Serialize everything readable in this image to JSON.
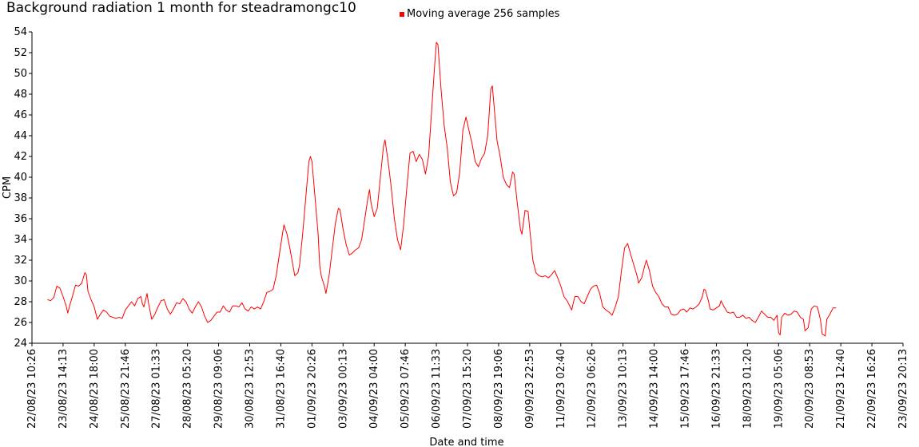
{
  "chart_data": {
    "type": "line",
    "title": "Background radiation 1 month for steadramongc10",
    "xlabel": "Date and time",
    "ylabel": "CPM",
    "ylim": [
      24,
      54
    ],
    "y_ticks": [
      24,
      26,
      28,
      30,
      32,
      34,
      36,
      38,
      40,
      42,
      44,
      46,
      48,
      50,
      52,
      54
    ],
    "x_ticks": [
      "22/08/23 10:26",
      "23/08/23 14:13",
      "24/08/23 18:00",
      "25/08/23 21:46",
      "27/08/23 01:33",
      "28/08/23 05:20",
      "29/08/23 09:06",
      "30/08/23 12:53",
      "31/08/23 16:40",
      "01/09/23 20:26",
      "03/09/23 00:13",
      "04/09/23 04:00",
      "05/09/23 07:46",
      "06/09/23 11:33",
      "07/09/23 15:20",
      "08/09/23 19:06",
      "09/09/23 22:53",
      "11/09/23 02:40",
      "12/09/23 06:26",
      "13/09/23 10:13",
      "14/09/23 14:00",
      "15/09/23 17:46",
      "16/09/23 21:33",
      "18/09/23 01:20",
      "19/09/23 05:06",
      "20/09/23 08:53",
      "21/09/23 12:40",
      "22/09/23 16:26",
      "23/09/23 20:13"
    ],
    "legend_position": "top-center",
    "grid": false,
    "series": [
      {
        "name": "Moving average 256 samples",
        "color": "#ff0000",
        "points": [
          [
            0.5,
            28.2
          ],
          [
            0.6,
            28.1
          ],
          [
            0.7,
            28.4
          ],
          [
            0.8,
            29.5
          ],
          [
            0.9,
            29.3
          ],
          [
            1.0,
            28.5
          ],
          [
            1.1,
            27.6
          ],
          [
            1.15,
            26.9
          ],
          [
            1.2,
            27.5
          ],
          [
            1.3,
            28.5
          ],
          [
            1.4,
            29.6
          ],
          [
            1.5,
            29.5
          ],
          [
            1.6,
            29.8
          ],
          [
            1.7,
            30.8
          ],
          [
            1.75,
            30.6
          ],
          [
            1.8,
            29.0
          ],
          [
            1.9,
            28.2
          ],
          [
            2.0,
            27.5
          ],
          [
            2.1,
            26.3
          ],
          [
            2.2,
            26.8
          ],
          [
            2.3,
            27.2
          ],
          [
            2.4,
            27.0
          ],
          [
            2.5,
            26.6
          ],
          [
            2.6,
            26.5
          ],
          [
            2.7,
            26.4
          ],
          [
            2.8,
            26.5
          ],
          [
            2.9,
            26.4
          ],
          [
            3.0,
            27.2
          ],
          [
            3.1,
            27.6
          ],
          [
            3.2,
            28.0
          ],
          [
            3.3,
            27.6
          ],
          [
            3.4,
            28.3
          ],
          [
            3.5,
            28.5
          ],
          [
            3.55,
            27.8
          ],
          [
            3.6,
            27.5
          ],
          [
            3.7,
            28.8
          ],
          [
            3.75,
            27.8
          ],
          [
            3.85,
            26.3
          ],
          [
            3.95,
            26.8
          ],
          [
            4.05,
            27.5
          ],
          [
            4.15,
            28.1
          ],
          [
            4.25,
            28.2
          ],
          [
            4.35,
            27.3
          ],
          [
            4.45,
            26.8
          ],
          [
            4.55,
            27.3
          ],
          [
            4.65,
            27.9
          ],
          [
            4.75,
            27.8
          ],
          [
            4.85,
            28.3
          ],
          [
            4.95,
            28.0
          ],
          [
            5.05,
            27.3
          ],
          [
            5.15,
            26.9
          ],
          [
            5.25,
            27.5
          ],
          [
            5.35,
            28.0
          ],
          [
            5.45,
            27.5
          ],
          [
            5.55,
            26.6
          ],
          [
            5.65,
            26.0
          ],
          [
            5.75,
            26.2
          ],
          [
            5.85,
            26.6
          ],
          [
            5.95,
            27.0
          ],
          [
            6.05,
            27.0
          ],
          [
            6.15,
            27.6
          ],
          [
            6.25,
            27.2
          ],
          [
            6.35,
            27.0
          ],
          [
            6.45,
            27.6
          ],
          [
            6.55,
            27.6
          ],
          [
            6.65,
            27.5
          ],
          [
            6.75,
            27.9
          ],
          [
            6.85,
            27.3
          ],
          [
            6.95,
            27.1
          ],
          [
            7.05,
            27.5
          ],
          [
            7.15,
            27.3
          ],
          [
            7.25,
            27.5
          ],
          [
            7.35,
            27.3
          ],
          [
            7.45,
            28.0
          ],
          [
            7.55,
            28.9
          ],
          [
            7.65,
            29.0
          ],
          [
            7.75,
            29.2
          ],
          [
            7.85,
            30.5
          ],
          [
            7.95,
            32.5
          ],
          [
            8.05,
            34.5
          ],
          [
            8.1,
            35.4
          ],
          [
            8.2,
            34.5
          ],
          [
            8.3,
            33.0
          ],
          [
            8.4,
            31.3
          ],
          [
            8.45,
            30.5
          ],
          [
            8.55,
            30.8
          ],
          [
            8.6,
            31.5
          ],
          [
            8.7,
            34.5
          ],
          [
            8.8,
            38.0
          ],
          [
            8.9,
            41.5
          ],
          [
            8.95,
            42.0
          ],
          [
            9.0,
            41.5
          ],
          [
            9.1,
            38.0
          ],
          [
            9.2,
            34.5
          ],
          [
            9.25,
            31.5
          ],
          [
            9.3,
            30.5
          ],
          [
            9.4,
            29.5
          ],
          [
            9.45,
            28.8
          ],
          [
            9.55,
            30.5
          ],
          [
            9.65,
            33.0
          ],
          [
            9.75,
            35.5
          ],
          [
            9.85,
            37.0
          ],
          [
            9.9,
            36.9
          ],
          [
            10.0,
            35.0
          ],
          [
            10.1,
            33.5
          ],
          [
            10.2,
            32.5
          ],
          [
            10.3,
            32.7
          ],
          [
            10.4,
            33.0
          ],
          [
            10.5,
            33.2
          ],
          [
            10.6,
            34.0
          ],
          [
            10.7,
            36.0
          ],
          [
            10.8,
            38.0
          ],
          [
            10.85,
            38.8
          ],
          [
            10.9,
            37.5
          ],
          [
            11.0,
            36.2
          ],
          [
            11.1,
            37.0
          ],
          [
            11.2,
            40.0
          ],
          [
            11.3,
            43.0
          ],
          [
            11.35,
            43.6
          ],
          [
            11.45,
            41.5
          ],
          [
            11.55,
            39.0
          ],
          [
            11.65,
            36.0
          ],
          [
            11.75,
            34.0
          ],
          [
            11.85,
            33.0
          ],
          [
            11.95,
            35.5
          ],
          [
            12.05,
            39.0
          ],
          [
            12.15,
            42.3
          ],
          [
            12.25,
            42.5
          ],
          [
            12.35,
            41.5
          ],
          [
            12.45,
            42.2
          ],
          [
            12.55,
            41.7
          ],
          [
            12.65,
            40.3
          ],
          [
            12.75,
            42.0
          ],
          [
            12.85,
            46.5
          ],
          [
            12.95,
            51.0
          ],
          [
            13.0,
            53.0
          ],
          [
            13.05,
            52.8
          ],
          [
            13.15,
            48.5
          ],
          [
            13.25,
            45.0
          ],
          [
            13.35,
            42.8
          ],
          [
            13.45,
            39.5
          ],
          [
            13.55,
            38.2
          ],
          [
            13.65,
            38.5
          ],
          [
            13.75,
            40.5
          ],
          [
            13.85,
            44.5
          ],
          [
            13.95,
            45.8
          ],
          [
            14.05,
            44.5
          ],
          [
            14.15,
            43.2
          ],
          [
            14.25,
            41.5
          ],
          [
            14.35,
            41.0
          ],
          [
            14.45,
            41.8
          ],
          [
            14.55,
            42.3
          ],
          [
            14.65,
            44.0
          ],
          [
            14.75,
            48.5
          ],
          [
            14.8,
            48.8
          ],
          [
            14.85,
            47.0
          ],
          [
            14.95,
            43.5
          ],
          [
            15.05,
            42.0
          ],
          [
            15.15,
            40.0
          ],
          [
            15.25,
            39.3
          ],
          [
            15.35,
            39.0
          ],
          [
            15.45,
            40.5
          ],
          [
            15.5,
            40.3
          ],
          [
            15.6,
            37.5
          ],
          [
            15.7,
            35.0
          ],
          [
            15.75,
            34.5
          ],
          [
            15.85,
            36.8
          ],
          [
            15.95,
            36.7
          ],
          [
            16.0,
            35.0
          ],
          [
            16.1,
            32.0
          ],
          [
            16.2,
            30.8
          ],
          [
            16.3,
            30.5
          ],
          [
            16.4,
            30.4
          ],
          [
            16.5,
            30.5
          ],
          [
            16.6,
            30.3
          ],
          [
            16.7,
            30.6
          ],
          [
            16.8,
            31.0
          ],
          [
            16.9,
            30.3
          ],
          [
            17.0,
            29.5
          ],
          [
            17.1,
            28.5
          ],
          [
            17.2,
            28.1
          ],
          [
            17.3,
            27.5
          ],
          [
            17.35,
            27.2
          ],
          [
            17.45,
            28.5
          ],
          [
            17.55,
            28.5
          ],
          [
            17.65,
            28.0
          ],
          [
            17.75,
            27.8
          ],
          [
            17.85,
            28.5
          ],
          [
            17.95,
            29.2
          ],
          [
            18.05,
            29.5
          ],
          [
            18.15,
            29.6
          ],
          [
            18.25,
            28.8
          ],
          [
            18.35,
            27.5
          ],
          [
            18.45,
            27.2
          ],
          [
            18.55,
            27.0
          ],
          [
            18.65,
            26.7
          ],
          [
            18.75,
            27.5
          ],
          [
            18.85,
            28.5
          ],
          [
            18.95,
            31.0
          ],
          [
            19.05,
            33.2
          ],
          [
            19.15,
            33.6
          ],
          [
            19.25,
            32.5
          ],
          [
            19.35,
            31.5
          ],
          [
            19.45,
            30.5
          ],
          [
            19.5,
            29.8
          ],
          [
            19.6,
            30.3
          ],
          [
            19.7,
            31.5
          ],
          [
            19.75,
            32.0
          ],
          [
            19.85,
            31.0
          ],
          [
            19.95,
            29.5
          ],
          [
            20.05,
            28.9
          ],
          [
            20.15,
            28.5
          ],
          [
            20.25,
            27.8
          ],
          [
            20.35,
            27.5
          ],
          [
            20.45,
            27.5
          ],
          [
            20.55,
            26.8
          ],
          [
            20.65,
            26.7
          ],
          [
            20.75,
            26.8
          ],
          [
            20.85,
            27.2
          ],
          [
            20.95,
            27.3
          ],
          [
            21.05,
            27.0
          ],
          [
            21.15,
            27.4
          ],
          [
            21.25,
            27.3
          ],
          [
            21.35,
            27.5
          ],
          [
            21.45,
            27.8
          ],
          [
            21.55,
            28.5
          ],
          [
            21.6,
            29.2
          ],
          [
            21.65,
            29.1
          ],
          [
            21.75,
            28.0
          ],
          [
            21.8,
            27.3
          ],
          [
            21.9,
            27.2
          ],
          [
            22.0,
            27.4
          ],
          [
            22.1,
            27.6
          ],
          [
            22.15,
            28.1
          ],
          [
            22.25,
            27.5
          ],
          [
            22.35,
            27.0
          ],
          [
            22.45,
            26.9
          ],
          [
            22.55,
            27.0
          ],
          [
            22.65,
            26.5
          ],
          [
            22.75,
            26.5
          ],
          [
            22.85,
            26.7
          ],
          [
            22.95,
            26.4
          ],
          [
            23.05,
            26.5
          ],
          [
            23.15,
            26.2
          ],
          [
            23.25,
            26.0
          ],
          [
            23.35,
            26.5
          ],
          [
            23.45,
            27.1
          ],
          [
            23.55,
            26.8
          ],
          [
            23.65,
            26.5
          ],
          [
            23.75,
            26.5
          ],
          [
            23.85,
            26.2
          ],
          [
            23.95,
            26.7
          ],
          [
            24.0,
            25.0
          ],
          [
            24.05,
            24.8
          ],
          [
            24.1,
            26.5
          ],
          [
            24.2,
            26.9
          ],
          [
            24.3,
            26.7
          ],
          [
            24.4,
            26.8
          ],
          [
            24.5,
            27.1
          ],
          [
            24.6,
            27.0
          ],
          [
            24.7,
            26.5
          ],
          [
            24.8,
            26.3
          ],
          [
            24.85,
            25.2
          ],
          [
            24.95,
            25.5
          ],
          [
            25.05,
            27.3
          ],
          [
            25.15,
            27.6
          ],
          [
            25.25,
            27.5
          ],
          [
            25.35,
            26.2
          ],
          [
            25.4,
            24.9
          ],
          [
            25.5,
            24.7
          ],
          [
            25.55,
            26.3
          ],
          [
            25.65,
            26.8
          ],
          [
            25.75,
            27.4
          ],
          [
            25.85,
            27.4
          ]
        ]
      }
    ]
  }
}
